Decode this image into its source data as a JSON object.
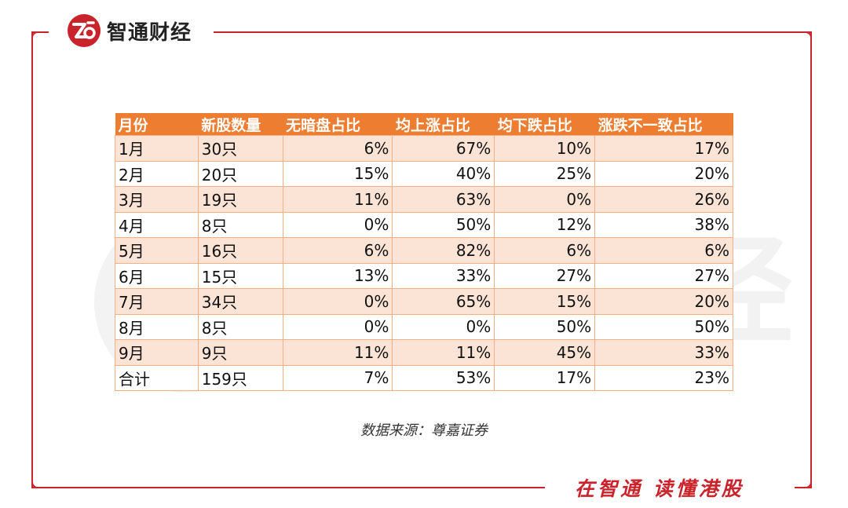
{
  "brand": {
    "name": "智通财经",
    "mark": "Zt",
    "watermark": "智通财经"
  },
  "colors": {
    "brand_red": "#c9242b",
    "header_orange": "#ed7d31",
    "row_tint": "#fbe4d5"
  },
  "table": {
    "headers": [
      "月份",
      "新股数量",
      "无暗盘占比",
      "均上涨占比",
      "均下跌占比",
      "涨跌不一致占比"
    ],
    "rows": [
      [
        "1月",
        "30只",
        "6%",
        "67%",
        "10%",
        "17%"
      ],
      [
        "2月",
        "20只",
        "15%",
        "40%",
        "25%",
        "20%"
      ],
      [
        "3月",
        "19只",
        "11%",
        "63%",
        "0%",
        "26%"
      ],
      [
        "4月",
        "8只",
        "0%",
        "50%",
        "12%",
        "38%"
      ],
      [
        "5月",
        "16只",
        "6%",
        "82%",
        "6%",
        "6%"
      ],
      [
        "6月",
        "15只",
        "13%",
        "33%",
        "27%",
        "27%"
      ],
      [
        "7月",
        "34只",
        "0%",
        "65%",
        "15%",
        "20%"
      ],
      [
        "8月",
        "8只",
        "0%",
        "0%",
        "50%",
        "50%"
      ],
      [
        "9月",
        "9只",
        "11%",
        "11%",
        "45%",
        "33%"
      ],
      [
        "合计",
        "159只",
        "7%",
        "53%",
        "17%",
        "23%"
      ]
    ]
  },
  "source": "数据来源：尊嘉证券",
  "slogan": "在智通 读懂港股"
}
